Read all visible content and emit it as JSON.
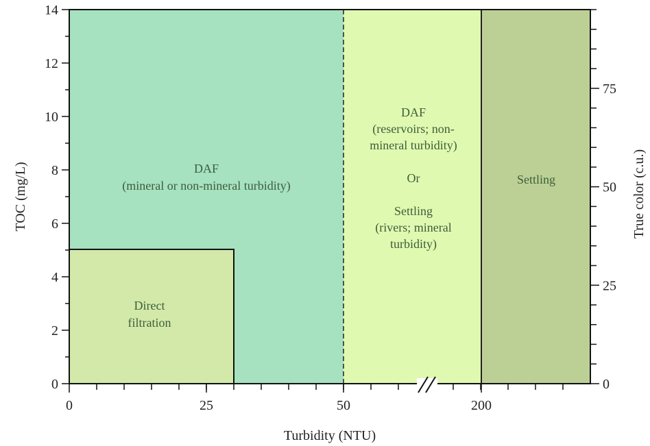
{
  "chart_data": {
    "type": "area",
    "title": "",
    "xlabel": "Turbidity (NTU)",
    "ylabel": "TOC (mg/L)",
    "y2label": "True color (c.u.)",
    "ylim": [
      0,
      14
    ],
    "y_ticks": [
      0,
      2,
      4,
      6,
      8,
      10,
      12,
      14
    ],
    "y2lim": [
      0,
      95
    ],
    "y2_ticks": [
      0,
      25,
      50,
      75
    ],
    "x_tick_labels": [
      "0",
      "25",
      "50",
      "200"
    ],
    "x_axis_break": "between 50 and 200 NTU",
    "regions": [
      {
        "name": "DAF-mineral",
        "lines": [
          "DAF",
          "(mineral or non-mineral turbidity)"
        ],
        "turbidity_range": [
          "0",
          "50"
        ],
        "toc_range": [
          0,
          14
        ],
        "color": "#a6e1c0"
      },
      {
        "name": "direct-filtration",
        "lines": [
          "Direct",
          "filtration"
        ],
        "turbidity_range": [
          "0",
          "30"
        ],
        "toc_range": [
          0,
          5
        ],
        "color": "#d2e9a9"
      },
      {
        "name": "DAF-or-settling",
        "lines": [
          "DAF",
          "(reservoirs; non-",
          "mineral turbidity)",
          "",
          "Or",
          "",
          "Settling",
          "(rivers; mineral",
          "turbidity)"
        ],
        "turbidity_range": [
          "50",
          "200"
        ],
        "toc_range": [
          0,
          14
        ],
        "color": "#e0f9b0"
      },
      {
        "name": "settling",
        "lines": [
          "Settling"
        ],
        "turbidity_range": [
          "200",
          ">200"
        ],
        "toc_range": [
          0,
          14
        ],
        "color": "#bcd096"
      }
    ],
    "text_color": "#3d5e3a"
  }
}
